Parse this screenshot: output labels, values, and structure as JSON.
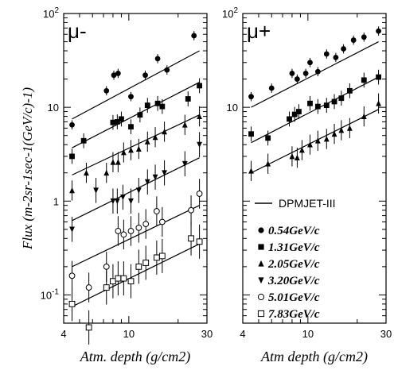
{
  "chart_data": [
    {
      "type": "scatter",
      "panel": "mu-",
      "label": "μ-",
      "xscale": "log",
      "yscale": "log",
      "xlim": [
        4,
        30
      ],
      "ylim": [
        0.05,
        100
      ],
      "xticks": [
        "4",
        "10",
        "30"
      ],
      "yticks": [
        "10",
        "1",
        "10"
      ],
      "ylabel": "Flux (m-2sr-1sec-1(GeV/c)-1)",
      "xlabel": "Atm. depth (g/cm2)",
      "series": [
        {
          "name": "0.54GeV/c",
          "marker": "filled-circle",
          "x": [
            4.5,
            7.3,
            8.1,
            8.6,
            10.3,
            12.6,
            15.0,
            17.1,
            25.0
          ],
          "y": [
            6.5,
            15,
            22,
            23,
            13,
            22,
            33,
            25,
            58
          ],
          "fit": [
            7.5,
            40
          ]
        },
        {
          "name": "1.31GeV/c",
          "marker": "filled-square",
          "x": [
            4.5,
            5.3,
            8.0,
            8.5,
            9.0,
            10.3,
            11.7,
            13.0,
            15.0,
            16.0,
            23.0,
            27.0
          ],
          "y": [
            3.0,
            4.4,
            6.9,
            7.0,
            7.5,
            6.2,
            8.3,
            10.5,
            11.0,
            10.2,
            12.3,
            17.0
          ],
          "fit": [
            3.7,
            18.5
          ]
        },
        {
          "name": "2.05GeV/c",
          "marker": "filled-triangle-up",
          "x": [
            4.5,
            5.5,
            7.3,
            8.0,
            8.6,
            9.3,
            10.3,
            11.5,
            13.0,
            14.5,
            16.5,
            22.0,
            27.0
          ],
          "y": [
            1.3,
            2.0,
            2.0,
            2.6,
            2.6,
            3.3,
            3.5,
            3.6,
            4.3,
            4.8,
            5.5,
            6.5,
            8.0
          ],
          "fit": [
            1.9,
            8.3
          ]
        },
        {
          "name": "3.20GeV/c",
          "marker": "filled-triangle-down",
          "x": [
            4.5,
            6.3,
            8.0,
            8.5,
            9.2,
            10.3,
            11.5,
            13.0,
            14.5,
            16.5,
            22.0,
            27.0
          ],
          "y": [
            0.5,
            1.3,
            1.0,
            1.0,
            1.1,
            1.0,
            1.3,
            1.6,
            1.8,
            2.0,
            2.5,
            4.0
          ],
          "fit": [
            0.62,
            2.9
          ]
        },
        {
          "name": "5.01GeV/c",
          "marker": "open-circle",
          "x": [
            4.5,
            5.7,
            7.3,
            8.6,
            9.3,
            10.3,
            11.5,
            12.7,
            14.8,
            16.0,
            24.0,
            27.0
          ],
          "y": [
            0.16,
            0.12,
            0.2,
            0.48,
            0.44,
            0.48,
            0.52,
            0.57,
            0.78,
            0.6,
            0.8,
            1.2
          ],
          "fit": [
            0.2,
            0.9
          ]
        },
        {
          "name": "7.83GeV/c",
          "marker": "open-square",
          "x": [
            4.5,
            5.7,
            7.3,
            8.0,
            8.6,
            9.3,
            10.3,
            11.5,
            12.7,
            14.8,
            16.0,
            24.0,
            27.0
          ],
          "y": [
            0.08,
            0.045,
            0.12,
            0.14,
            0.15,
            0.15,
            0.14,
            0.2,
            0.22,
            0.25,
            0.26,
            0.4,
            0.37
          ],
          "fit": [
            0.075,
            0.35
          ]
        }
      ]
    },
    {
      "type": "scatter",
      "panel": "mu+",
      "label": "μ+",
      "xscale": "log",
      "yscale": "log",
      "xlim": [
        4,
        30
      ],
      "ylim": [
        0.05,
        100
      ],
      "xticks": [
        "4",
        "10",
        "30"
      ],
      "yticks": [
        "10"
      ],
      "xlabel": "Atm depth (g/cm2)",
      "fit_legend": "DPMJET-III",
      "series": [
        {
          "name": "0.54GeV/c",
          "marker": "filled-circle",
          "x": [
            4.5,
            6.0,
            8.0,
            8.6,
            9.7,
            10.3,
            11.5,
            13.0,
            14.8,
            16.5,
            19.0,
            22.0,
            27.0
          ],
          "y": [
            13,
            16,
            23,
            20,
            23,
            30,
            24,
            37,
            34,
            42,
            52,
            56,
            65
          ],
          "fit": [
            10,
            50
          ]
        },
        {
          "name": "1.31GeV/c",
          "marker": "filled-square",
          "x": [
            4.5,
            5.7,
            7.7,
            8.3,
            8.8,
            10.3,
            11.5,
            13.0,
            14.5,
            16.0,
            18.0,
            22.0,
            27.0
          ],
          "y": [
            5.2,
            4.7,
            7.5,
            8.4,
            9.0,
            11.0,
            10.2,
            10.5,
            11.5,
            12.5,
            15.0,
            19.5,
            21.0
          ],
          "fit": [
            4.2,
            21
          ]
        },
        {
          "name": "2.05GeV/c",
          "marker": "filled-triangle-up",
          "x": [
            4.5,
            5.7,
            8.0,
            8.6,
            9.2,
            10.3,
            11.5,
            13.0,
            14.5,
            16.0,
            18.0,
            22.0,
            27.0
          ],
          "y": [
            2.1,
            2.5,
            3.0,
            2.9,
            3.5,
            4.0,
            4.4,
            4.6,
            5.2,
            5.7,
            6.0,
            8.0,
            11.0
          ],
          "fit": [
            2.0,
            9.5
          ]
        }
      ]
    }
  ],
  "legend": {
    "fit_label": "DPMJET-III",
    "entries": [
      "0.54GeV/c",
      "1.31GeV/c",
      "2.05GeV/c",
      "3.20GeV/c",
      "5.01GeV/c",
      "7.83GeV/c"
    ]
  }
}
